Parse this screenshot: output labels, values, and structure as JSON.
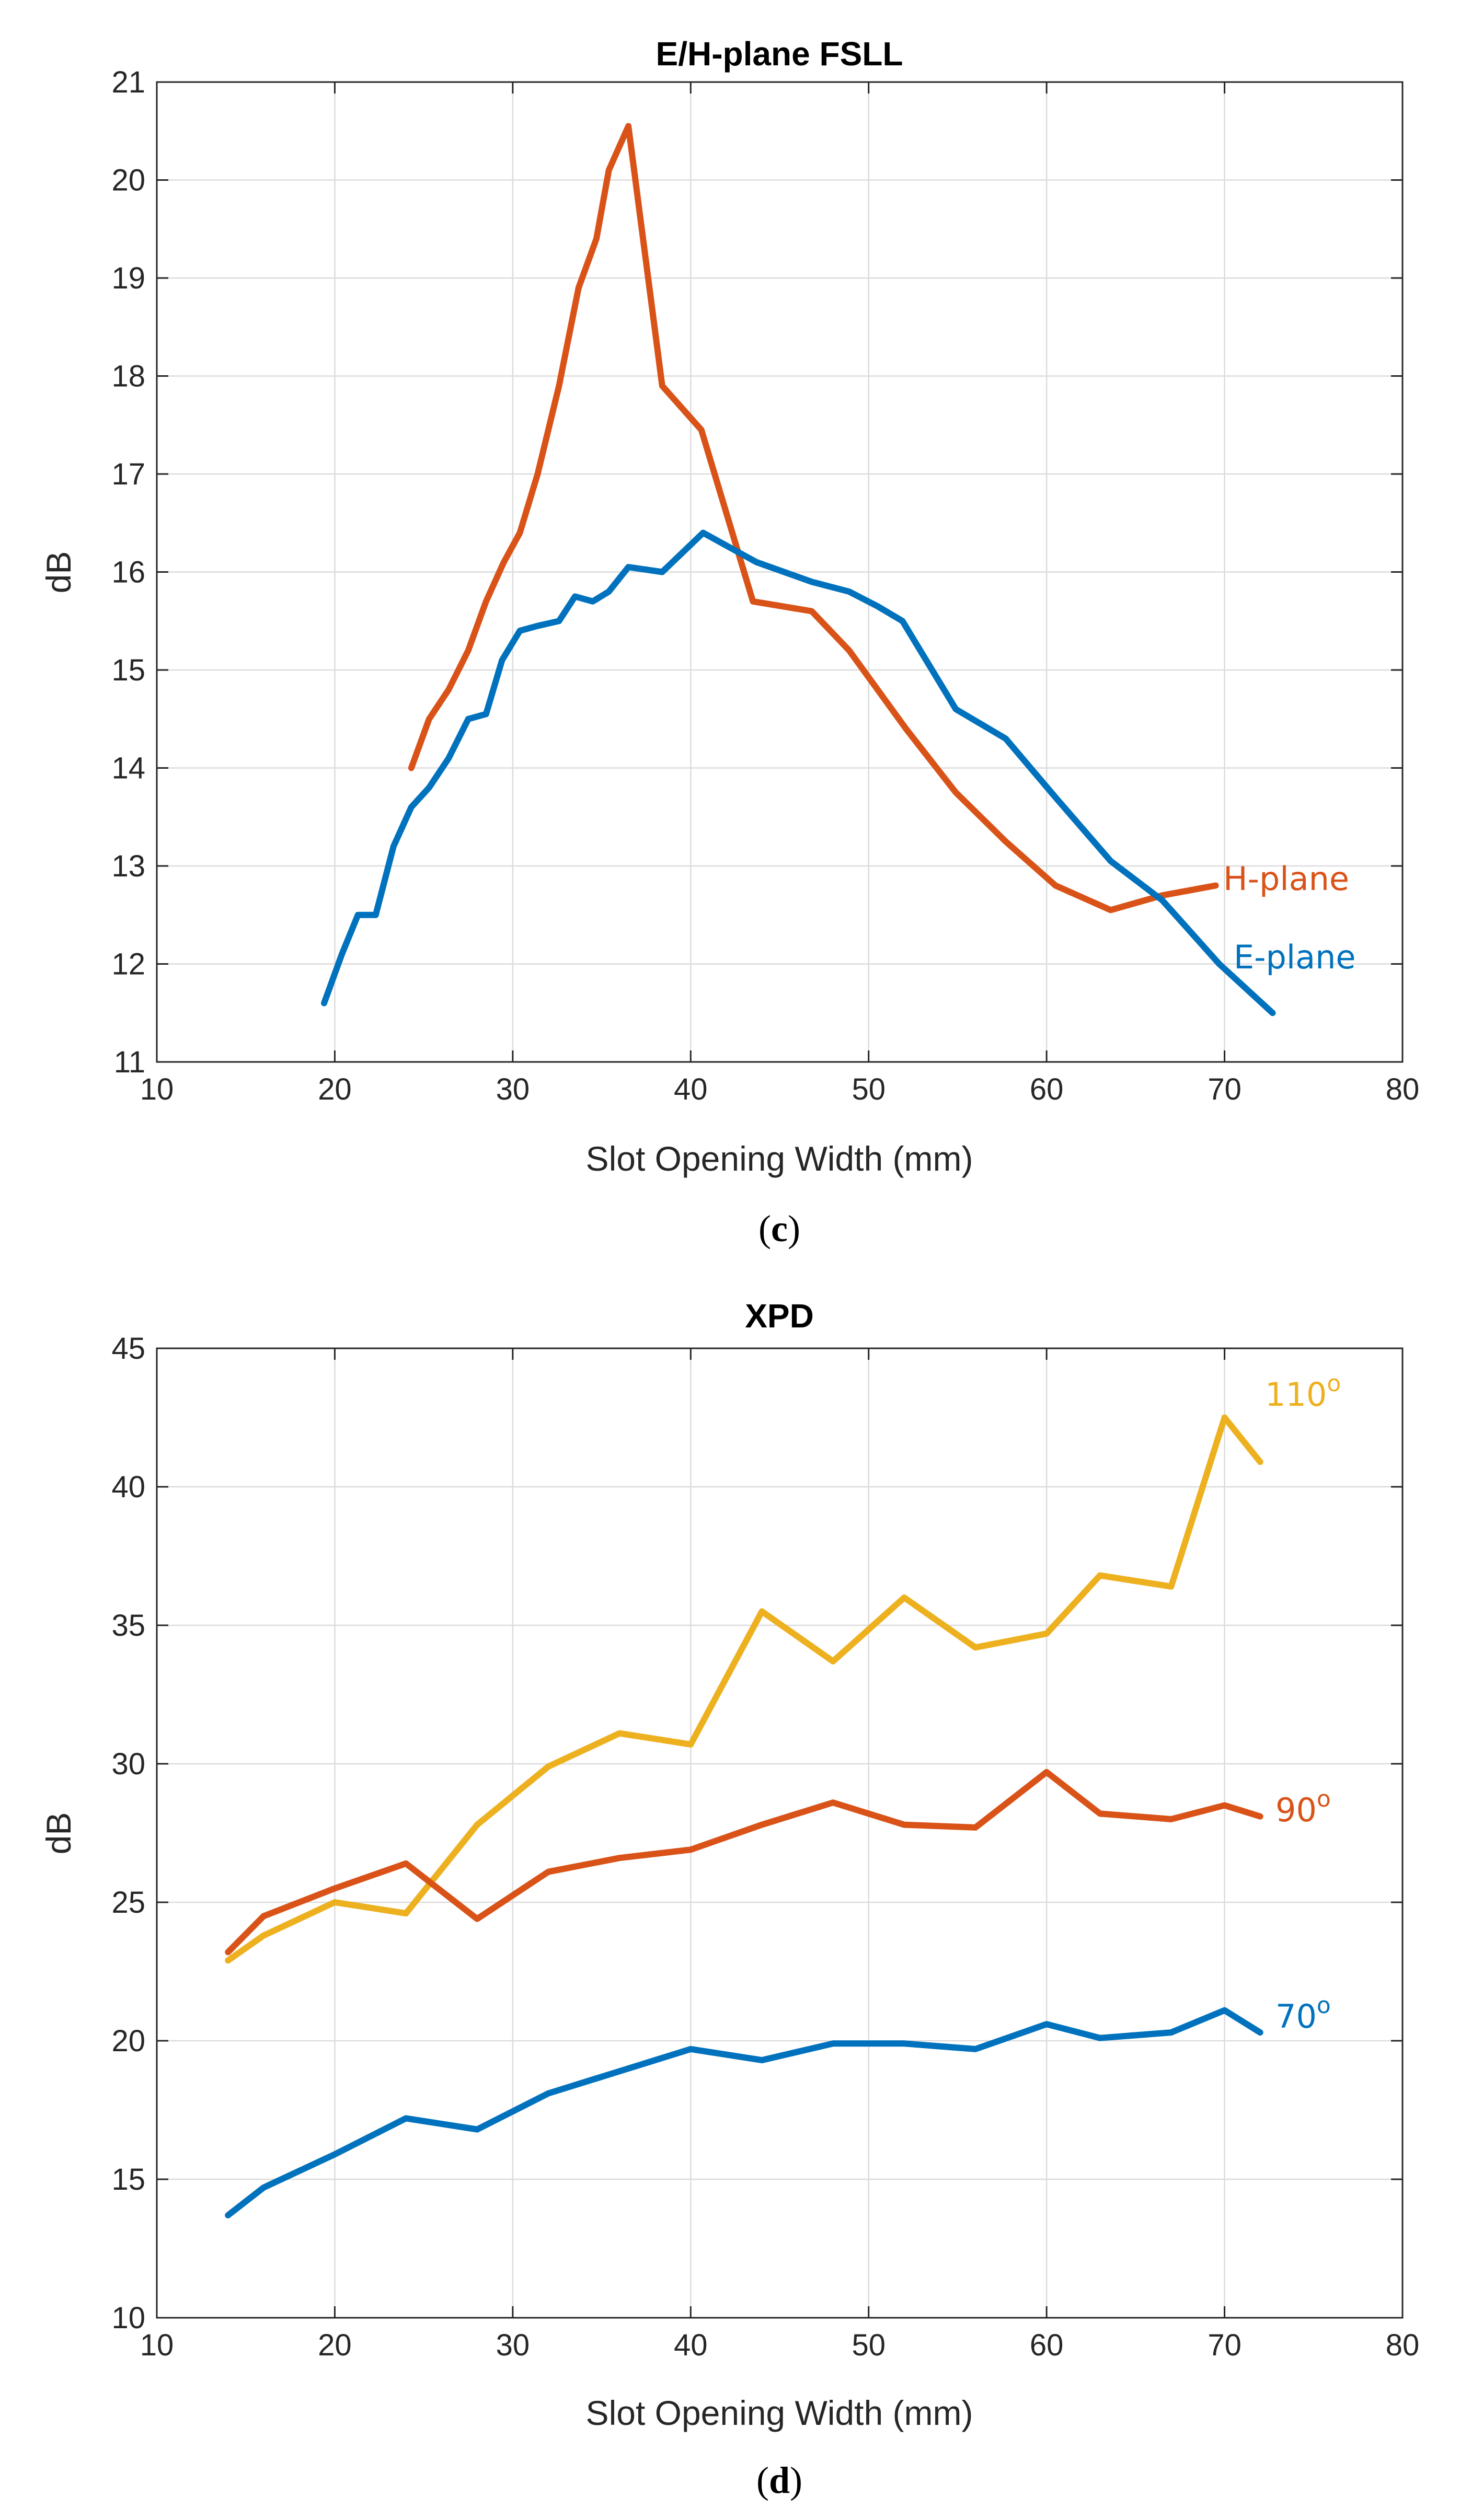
{
  "chart_data": [
    {
      "type": "line",
      "title": "E/H-plane FSLL",
      "xlabel": "Slot Opening Width (mm)",
      "ylabel": "dB",
      "xlim": [
        10,
        80
      ],
      "ylim": [
        11,
        21
      ],
      "xticks": [
        10,
        20,
        30,
        40,
        50,
        60,
        70,
        80
      ],
      "yticks": [
        11,
        12,
        13,
        14,
        15,
        16,
        17,
        18,
        19,
        20,
        21
      ],
      "grid": true,
      "caption": {
        "open": "(",
        "letter": "c",
        "close": ")"
      },
      "series": [
        {
          "name": "H-plane",
          "label": "H-plane",
          "color": "#D95319",
          "x": [
            24.3,
            25.3,
            26.4,
            27.5,
            28.5,
            29.5,
            30.4,
            31.4,
            32.6,
            33.7,
            34.7,
            35.4,
            36.5,
            38.4,
            40.6,
            43.5,
            46.8,
            48.9,
            52.1,
            54.9,
            57.7,
            60.5,
            63.6,
            66.5,
            69.5
          ],
          "y": [
            14.0,
            14.5,
            14.8,
            15.2,
            15.7,
            16.1,
            16.4,
            17.0,
            17.9,
            18.9,
            19.4,
            20.1,
            20.55,
            17.9,
            17.45,
            15.7,
            15.6,
            15.2,
            14.4,
            13.75,
            13.25,
            12.8,
            12.55,
            12.7,
            12.8
          ]
        },
        {
          "name": "E-plane",
          "label": "E-plane",
          "color": "#0072BD",
          "x": [
            19.4,
            20.4,
            21.3,
            22.3,
            23.3,
            24.3,
            25.3,
            26.4,
            27.5,
            28.5,
            29.4,
            30.4,
            31.4,
            32.6,
            33.5,
            34.5,
            35.4,
            36.5,
            38.4,
            40.7,
            43.7,
            46.8,
            48.9,
            50.5,
            51.9,
            54.9,
            57.7,
            60.5,
            63.6,
            66.5,
            69.7,
            72.7
          ],
          "y": [
            11.6,
            12.1,
            12.5,
            12.5,
            13.2,
            13.6,
            13.8,
            14.1,
            14.5,
            14.55,
            15.1,
            15.4,
            15.45,
            15.5,
            15.75,
            15.7,
            15.8,
            16.05,
            16.0,
            16.4,
            16.1,
            15.9,
            15.8,
            15.65,
            15.5,
            14.6,
            14.3,
            13.7,
            13.05,
            12.65,
            12.0,
            11.5
          ]
        }
      ]
    },
    {
      "type": "line",
      "title": "XPD",
      "xlabel": "Slot Opening Width (mm)",
      "ylabel": "dB",
      "xlim": [
        10,
        80
      ],
      "ylim": [
        10,
        45
      ],
      "xticks": [
        10,
        20,
        30,
        40,
        50,
        60,
        70,
        80
      ],
      "yticks": [
        10,
        15,
        20,
        25,
        30,
        35,
        40,
        45
      ],
      "grid": true,
      "caption": {
        "open": "(",
        "letter": "d",
        "close": ")"
      },
      "series": [
        {
          "name": "110o",
          "label": "110",
          "label_sup": "o",
          "color": "#EDB120",
          "x": [
            14,
            16,
            20,
            24,
            28,
            32,
            36,
            40,
            44,
            48,
            52,
            56,
            60,
            63,
            67,
            70,
            72
          ],
          "y": [
            22.9,
            23.8,
            25.0,
            24.6,
            27.8,
            29.9,
            31.1,
            30.7,
            35.5,
            33.7,
            36.0,
            34.2,
            34.7,
            36.8,
            36.4,
            42.5,
            40.9
          ]
        },
        {
          "name": "90o",
          "label": "90",
          "label_sup": "o",
          "color": "#D95319",
          "x": [
            14,
            16,
            20,
            24,
            28,
            32,
            36,
            40,
            44,
            48,
            52,
            56,
            60,
            63,
            67,
            70,
            72
          ],
          "y": [
            23.2,
            24.5,
            25.5,
            26.4,
            24.4,
            26.1,
            26.6,
            26.9,
            27.8,
            28.6,
            27.8,
            27.7,
            29.7,
            28.2,
            28.0,
            28.5,
            28.1
          ]
        },
        {
          "name": "70o",
          "label": "70",
          "label_sup": "o",
          "color": "#0072BD",
          "x": [
            14,
            16,
            20,
            24,
            28,
            32,
            36,
            40,
            44,
            48,
            52,
            56,
            60,
            63,
            67,
            70,
            72
          ],
          "y": [
            13.7,
            14.7,
            15.9,
            17.2,
            16.8,
            18.1,
            18.9,
            19.7,
            19.3,
            19.9,
            19.9,
            19.7,
            20.6,
            20.1,
            20.3,
            21.1,
            20.3
          ]
        }
      ]
    }
  ]
}
